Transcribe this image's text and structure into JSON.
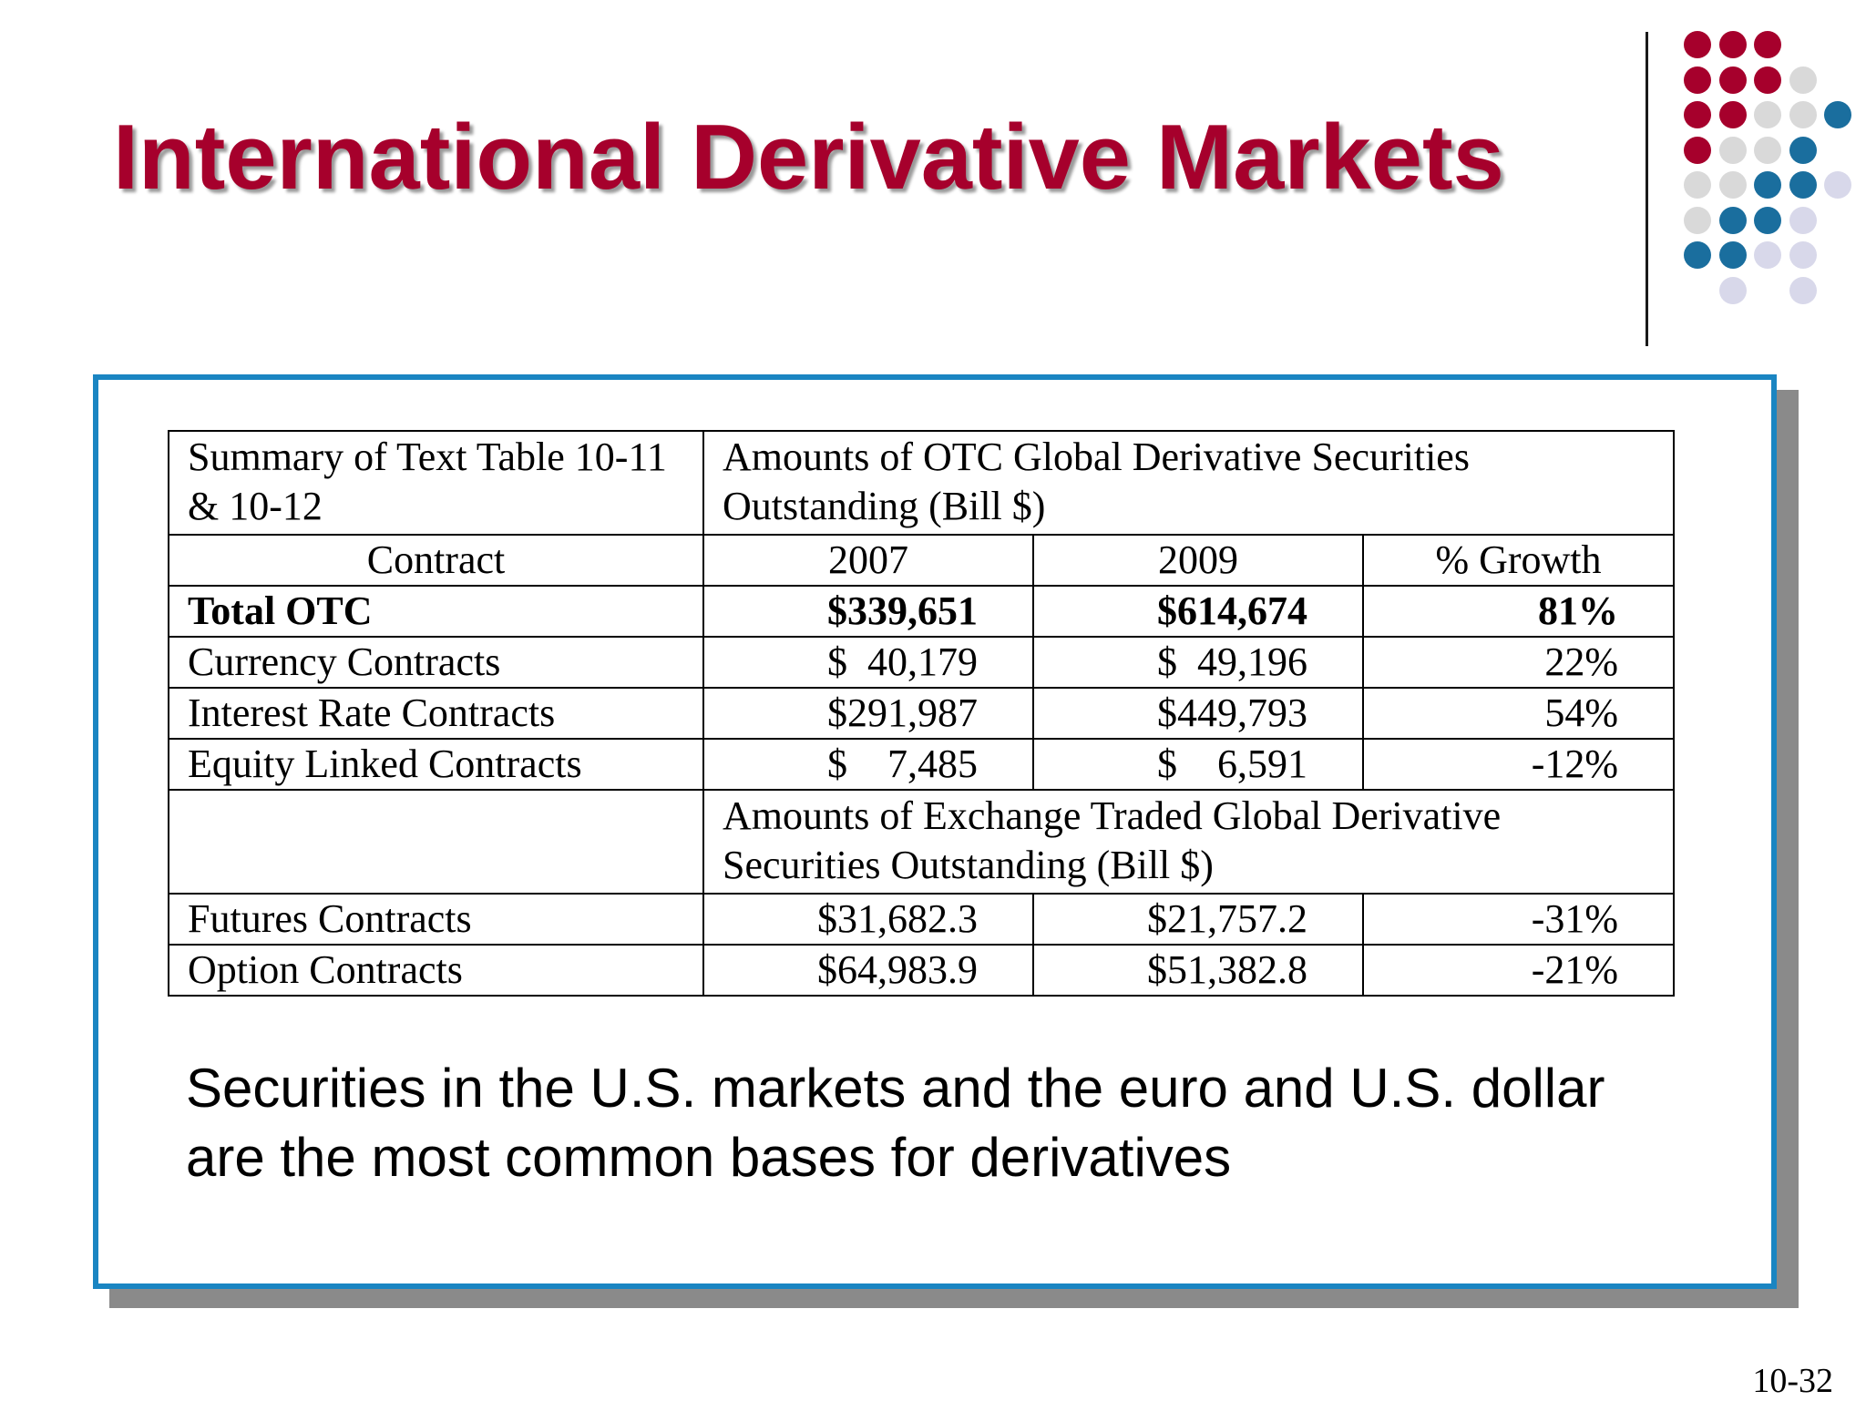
{
  "slide": {
    "title": "International Derivative Markets",
    "page_number": "10-32",
    "note": "Securities in the U.S. markets and the euro and U.S. dollar are the most common bases for derivatives"
  },
  "colors": {
    "title": "#a6002c",
    "panel_border": "#1a85c2",
    "dot_red": "#a6002c",
    "dot_gray": "#d9d9d9",
    "dot_blue": "#1a6e9e",
    "dot_lavender": "#d8d8ea"
  },
  "decoration": {
    "dot_grid": [
      [
        "red",
        "red",
        "red",
        null,
        null
      ],
      [
        "red",
        "red",
        "red",
        "gray",
        null
      ],
      [
        "red",
        "red",
        "gray",
        "gray",
        "blue"
      ],
      [
        "red",
        "gray",
        "gray",
        "blue",
        null
      ],
      [
        "gray",
        "gray",
        "blue",
        "blue",
        "lavender"
      ],
      [
        "gray",
        "blue",
        "blue",
        "lavender",
        null
      ],
      [
        "blue",
        "blue",
        "lavender",
        "lavender",
        null
      ],
      [
        null,
        "lavender",
        null,
        "lavender",
        null
      ]
    ]
  },
  "table": {
    "summary_label": "Summary of Text Table 10-11 & 10-12",
    "otc_heading": "Amounts of OTC Global Derivative Securities Outstanding (Bill $)",
    "columns": [
      "Contract",
      "2007",
      "2009",
      "% Growth"
    ],
    "otc_rows": [
      {
        "contract": "Total OTC",
        "y2007": "$339,651",
        "y2009": "$614,674",
        "growth": "81%",
        "bold": true
      },
      {
        "contract": "Currency Contracts",
        "y2007": "$  40,179",
        "y2009": "$  49,196",
        "growth": "22%"
      },
      {
        "contract": "Interest Rate Contracts",
        "y2007": "$291,987",
        "y2009": "$449,793",
        "growth": "54%"
      },
      {
        "contract": "Equity Linked Contracts",
        "y2007": "$    7,485",
        "y2009": "$    6,591",
        "growth": "-12%"
      }
    ],
    "exchange_heading": "Amounts of Exchange Traded Global Derivative Securities Outstanding (Bill $)",
    "exchange_rows": [
      {
        "contract": "Futures Contracts",
        "y2007": "$31,682.3",
        "y2009": "$21,757.2",
        "growth": "-31%"
      },
      {
        "contract": "Option Contracts",
        "y2007": "$64,983.9",
        "y2009": "$51,382.8",
        "growth": "-21%"
      }
    ]
  }
}
